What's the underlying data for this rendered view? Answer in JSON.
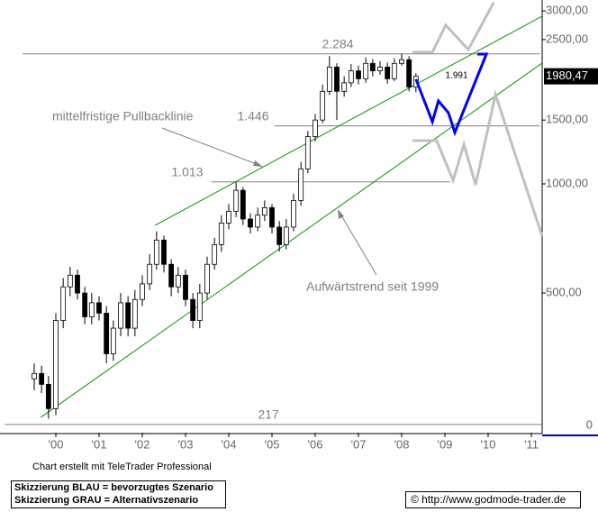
{
  "chart_data": {
    "type": "candlestick",
    "log_scale": true,
    "xlim": [
      1998.8125,
      2011.25
    ],
    "xticks": [
      {
        "value": 2000,
        "label": "'00"
      },
      {
        "value": 2001,
        "label": "'01"
      },
      {
        "value": 2002,
        "label": "'02"
      },
      {
        "value": 2003,
        "label": "'03"
      },
      {
        "value": 2004,
        "label": "'04"
      },
      {
        "value": 2005,
        "label": "'05"
      },
      {
        "value": 2006,
        "label": "'06"
      },
      {
        "value": 2007,
        "label": "'07"
      },
      {
        "value": 2008,
        "label": "'08"
      },
      {
        "value": 2009,
        "label": "'09"
      },
      {
        "value": 2010,
        "label": "'10"
      },
      {
        "value": 2011,
        "label": "'11"
      }
    ],
    "ylim": [
      206,
      3215
    ],
    "yticks": [
      {
        "value": 500,
        "label": "500,00"
      },
      {
        "value": 1000,
        "label": "1000,00"
      },
      {
        "value": 1500,
        "label": "1500,00"
      },
      {
        "value": 2500,
        "label": "2500,00"
      },
      {
        "value": 3000,
        "label": "3000,00"
      }
    ],
    "axis_bottom_label": "0",
    "last_price": {
      "value": 1980.47,
      "label": "1980,47"
    },
    "x": [
      1999.5,
      1999.67,
      1999.83,
      2000.0,
      2000.17,
      2000.33,
      2000.5,
      2000.67,
      2000.83,
      2001.0,
      2001.17,
      2001.33,
      2001.5,
      2001.67,
      2001.83,
      2002.0,
      2002.17,
      2002.33,
      2002.5,
      2002.67,
      2002.83,
      2003.0,
      2003.17,
      2003.33,
      2003.5,
      2003.67,
      2003.83,
      2004.0,
      2004.17,
      2004.33,
      2004.5,
      2004.67,
      2004.83,
      2005.0,
      2005.17,
      2005.33,
      2005.5,
      2005.67,
      2005.83,
      2006.0,
      2006.17,
      2006.33,
      2006.5,
      2006.67,
      2006.83,
      2007.0,
      2007.17,
      2007.33,
      2007.5,
      2007.67,
      2007.83,
      2008.0,
      2008.17,
      2008.33
    ],
    "open": [
      290,
      300,
      280,
      240,
      420,
      520,
      560,
      500,
      430,
      470,
      440,
      340,
      400,
      470,
      400,
      480,
      530,
      600,
      700,
      600,
      520,
      560,
      480,
      420,
      500,
      600,
      680,
      780,
      840,
      960,
      800,
      760,
      820,
      860,
      760,
      680,
      760,
      900,
      1100,
      1350,
      1500,
      1800,
      2100,
      1800,
      1900,
      2050,
      1950,
      2150,
      2050,
      2100,
      1950,
      2150,
      2200,
      1850
    ],
    "high": [
      320,
      315,
      295,
      440,
      550,
      590,
      580,
      520,
      500,
      490,
      460,
      420,
      500,
      490,
      510,
      560,
      640,
      740,
      720,
      620,
      590,
      580,
      500,
      530,
      630,
      710,
      820,
      880,
      1010,
      980,
      830,
      860,
      900,
      880,
      790,
      800,
      940,
      1150,
      1400,
      1560,
      1880,
      2250,
      2150,
      1980,
      2140,
      2120,
      2230,
      2210,
      2180,
      2160,
      2220,
      2284,
      2250,
      2020
    ],
    "low": [
      270,
      265,
      225,
      230,
      400,
      490,
      480,
      410,
      410,
      420,
      320,
      325,
      380,
      380,
      380,
      460,
      510,
      580,
      570,
      490,
      500,
      460,
      400,
      400,
      480,
      580,
      650,
      750,
      810,
      770,
      730,
      740,
      790,
      730,
      650,
      660,
      740,
      870,
      1070,
      1310,
      1470,
      1760,
      1500,
      1740,
      1850,
      1880,
      1900,
      1980,
      2000,
      1890,
      1920,
      2120,
      1800,
      1790
    ],
    "close": [
      300,
      280,
      240,
      420,
      520,
      560,
      500,
      430,
      470,
      440,
      340,
      400,
      470,
      400,
      480,
      530,
      600,
      700,
      600,
      520,
      560,
      480,
      420,
      500,
      600,
      680,
      780,
      840,
      960,
      800,
      760,
      820,
      860,
      760,
      680,
      760,
      900,
      1100,
      1350,
      1500,
      1800,
      2100,
      1800,
      1900,
      2050,
      1950,
      2150,
      2050,
      2100,
      1950,
      2150,
      2200,
      1850,
      1980
    ],
    "up_color": "#ffffff",
    "down_color": "#000000",
    "levels": [
      {
        "value": 2284,
        "label": "2.284",
        "start": 1999.23,
        "end": 2011.2
      },
      {
        "value": 1991,
        "label": "1.991"
      },
      {
        "value": 1446,
        "label": "1.446",
        "start": 2005.06,
        "end": 2011.2
      },
      {
        "value": 1013,
        "label": "1.013",
        "start": 2003.6,
        "end": 2009.12
      },
      {
        "value": 217,
        "label": "217",
        "start": 1998.82,
        "end": 2011.25
      }
    ],
    "level_color": "#808080",
    "trendlines": [
      {
        "name": "mittelfristige Pullbacklinie",
        "x": [
          2002.29,
          2011.25
        ],
        "values": [
          768,
          2902
        ]
      },
      {
        "name": "Aufwärtstrend seit 1999",
        "x": [
          1999.65,
          2011.25
        ],
        "values": [
          227,
          2154
        ]
      }
    ],
    "trend_color": "#009900",
    "scenarios": [
      {
        "name": "Skizzierung BLAU = bevorzugtes Szenario",
        "color": "#0000ff",
        "x": [
          2008.33,
          2008.71,
          2008.85,
          2009.08,
          2009.23,
          2009.96,
          2009.75
        ],
        "values": [
          1944,
          1484,
          1694,
          1572,
          1386,
          2281,
          2281
        ]
      },
      {
        "name": "Skizzierung GRAU = Alternativszenario",
        "color": "#c0c0c0",
        "x": [
          2008.25,
          2008.71,
          2009.02,
          2009.54,
          2010.13
        ],
        "values": [
          2308,
          2308,
          2741,
          2348,
          3163
        ]
      },
      {
        "name": "Skizzierung GRAU = Alternativszenario",
        "color": "#c0c0c0",
        "x": [
          2008.25,
          2008.81,
          2009.19,
          2009.44,
          2009.71,
          2010.17,
          2011.25
        ],
        "values": [
          1316,
          1316,
          1023,
          1286,
          994,
          1763,
          717
        ]
      }
    ],
    "credit": "Chart erstellt mit TeleTrader Professional",
    "source": "© http://www.godmode-trader.de"
  }
}
